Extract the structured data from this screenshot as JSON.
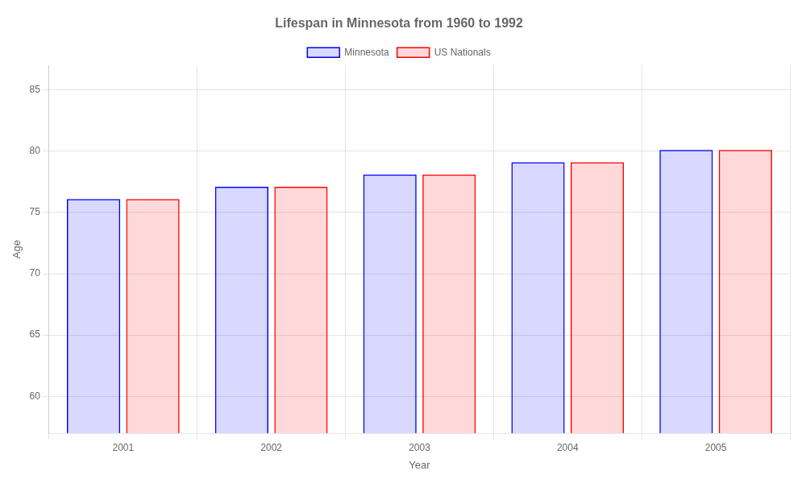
{
  "chart_data": {
    "type": "bar",
    "title": "Lifespan in Minnesota from 1960 to 1992",
    "xlabel": "Year",
    "ylabel": "Age",
    "categories": [
      "2001",
      "2002",
      "2003",
      "2004",
      "2005"
    ],
    "series": [
      {
        "name": "Minnesota",
        "color": "#0000ff",
        "values": [
          76.1,
          77.1,
          78.1,
          79.1,
          80.1
        ]
      },
      {
        "name": "US Nationals",
        "color": "#ff0000",
        "values": [
          76.1,
          77.1,
          78.1,
          79.1,
          80.1
        ]
      }
    ],
    "ylim": [
      57,
      87
    ],
    "yticks": [
      60,
      65,
      70,
      75,
      80,
      85
    ],
    "grid": true,
    "legend": "top"
  }
}
